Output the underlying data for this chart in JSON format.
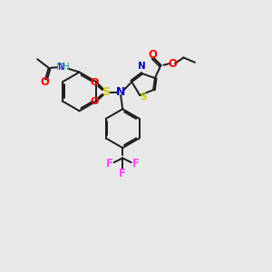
{
  "bg_color": "#e8e8e8",
  "bond_color": "#1a1a1a",
  "colors": {
    "O": "#ff0000",
    "N": "#0000cc",
    "S": "#cccc00",
    "F": "#ff44ff",
    "H": "#2299aa",
    "C": "#1a1a1a"
  },
  "figsize": [
    3.0,
    3.0
  ],
  "dpi": 100
}
